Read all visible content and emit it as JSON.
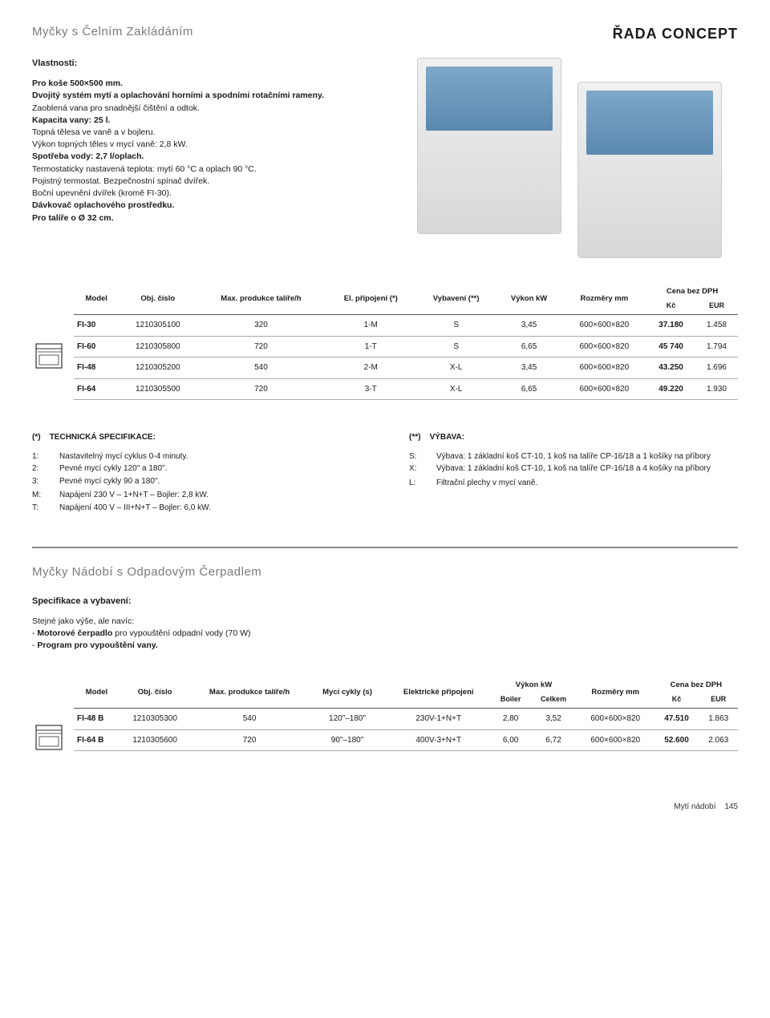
{
  "header": {
    "section_title": "Myčky s Čelním Zakládáním",
    "series_title": "ŘADA CONCEPT"
  },
  "features": {
    "heading": "Vlastnosti:",
    "lines": [
      {
        "t": "Pro koše 500×500 mm.",
        "b": true
      },
      {
        "t": "Dvojitý systém mytí a oplachování horními a spodními rotačními rameny.",
        "b": true,
        "cont": ""
      },
      {
        "t": "Zaoblená vana pro snadnější čištění a odtok.",
        "b": false
      },
      {
        "t": "Kapacita vany: 25 l.",
        "b": true
      },
      {
        "t": "Topná tělesa ve vaně a v bojleru.",
        "b": false
      },
      {
        "t": "Výkon topných těles v mycí vaně: 2,8 kW.",
        "b": false
      },
      {
        "t": "Spotřeba vody: 2,7 l/oplach.",
        "b": true
      },
      {
        "t": "Termostaticky nastavená teplota: mytí 60 °C a oplach 90 °C.",
        "b": false
      },
      {
        "t": "Pojistný termostat. Bezpečnostní spínač dvířek.",
        "b": false
      },
      {
        "t": "Boční upevnění dvířek (kromě FI-30).",
        "b": false
      },
      {
        "t": "Dávkovač oplachového prostředku.",
        "b": true
      },
      {
        "t": "Pro talíře o Ø 32 cm.",
        "b": true
      }
    ]
  },
  "table1": {
    "columns": {
      "model": "Model",
      "obj": "Obj. číslo",
      "max": "Max. produkce talíře/h",
      "conn": "El. připojení (*)",
      "equip": "Vybavení (**)",
      "power": "Výkon kW",
      "dim": "Rozměry mm",
      "price": "Cena bez DPH",
      "kc": "Kč",
      "eur": "EUR"
    },
    "rows": [
      {
        "model": "FI-30",
        "obj": "1210305100",
        "max": "320",
        "conn": "1-M",
        "equip": "S",
        "power": "3,45",
        "dim": "600×600×820",
        "kc": "37.180",
        "eur": "1.458"
      },
      {
        "model": "FI-60",
        "obj": "1210305800",
        "max": "720",
        "conn": "1-T",
        "equip": "S",
        "power": "6,65",
        "dim": "600×600×820",
        "kc": "45 740",
        "eur": "1.794"
      },
      {
        "model": "FI-48",
        "obj": "1210305200",
        "max": "540",
        "conn": "2-M",
        "equip": "X-L",
        "power": "3,45",
        "dim": "600×600×820",
        "kc": "43.250",
        "eur": "1.696"
      },
      {
        "model": "FI-64",
        "obj": "1210305500",
        "max": "720",
        "conn": "3-T",
        "equip": "X-L",
        "power": "6,65",
        "dim": "600×600×820",
        "kc": "49.220",
        "eur": "1.930"
      }
    ]
  },
  "footnotes": {
    "left": {
      "heading_prefix": "(*)",
      "heading": "TECHNICKÁ SPECIFIKACE:",
      "rows": [
        {
          "k": "1:",
          "v": "Nastavitelný mycí cyklus 0-4 minuty."
        },
        {
          "k": "2:",
          "v": "Pevné mycí cykly 120\" a 180\"."
        },
        {
          "k": "3:",
          "v": "Pevné mycí cykly 90 a 180\"."
        },
        {
          "k": "",
          "v": ""
        },
        {
          "k": "M:",
          "v": "Napájení 230 V – 1+N+T – Bojler: 2,8 kW."
        },
        {
          "k": "T:",
          "v": "Napájení 400 V – III+N+T – Bojler: 6,0 kW."
        }
      ]
    },
    "right": {
      "heading_prefix": "(**)",
      "heading": "VÝBAVA:",
      "rows": [
        {
          "k": "S:",
          "v": "Výbava: 1 základní koš CT-10, 1 koš na talíře CP-16/18 a 1 košíky na příbory"
        },
        {
          "k": "X:",
          "v": "Výbava: 1 základní koš CT-10, 1 koš na talíře CP-16/18 a 4 košíky na příbory"
        },
        {
          "k": "",
          "v": ""
        },
        {
          "k": "L:",
          "v": "Filtrační plechy v mycí vaně."
        }
      ]
    }
  },
  "section2": {
    "title": "Myčky Nádobí s Odpadovým Čerpadlem",
    "subheading": "Specifikace a vybavení:",
    "lines": [
      "Stejné jako výše, ale navíc:",
      "- Motorové čerpadlo pro vypouštění odpadní vody (70 W)",
      "- Program pro vypouštění vany."
    ],
    "boldmap": [
      false,
      true,
      true
    ]
  },
  "table2": {
    "columns": {
      "model": "Model",
      "obj": "Obj. číslo",
      "max": "Max. produkce talíře/h",
      "cycles": "Mycí cykly (s)",
      "elconn": "Elektrické připojení",
      "power": "Výkon kW",
      "boiler": "Boiler",
      "total": "Celkem",
      "dim": "Rozměry mm",
      "price": "Cena bez DPH",
      "kc": "Kč",
      "eur": "EUR"
    },
    "rows": [
      {
        "model": "FI-48 B",
        "obj": "1210305300",
        "max": "540",
        "cycles": "120\"–180\"",
        "elconn": "230V-1+N+T",
        "boiler": "2,80",
        "total": "3,52",
        "dim": "600×600×820",
        "kc": "47.510",
        "eur": "1.863"
      },
      {
        "model": "FI-64 B",
        "obj": "1210305600",
        "max": "720",
        "cycles": "90\"–180\"",
        "elconn": "400V-3+N+T",
        "boiler": "6,00",
        "total": "6,72",
        "dim": "600×600×820",
        "kc": "52.600",
        "eur": "2.063"
      }
    ]
  },
  "footer": {
    "label": "Mytí nádobí",
    "page": "145"
  },
  "style": {
    "series_color": "#1a1a1a",
    "muted_color": "#7a7a7a",
    "rule_color": "#888888",
    "row_border": "#aaaaaa"
  }
}
